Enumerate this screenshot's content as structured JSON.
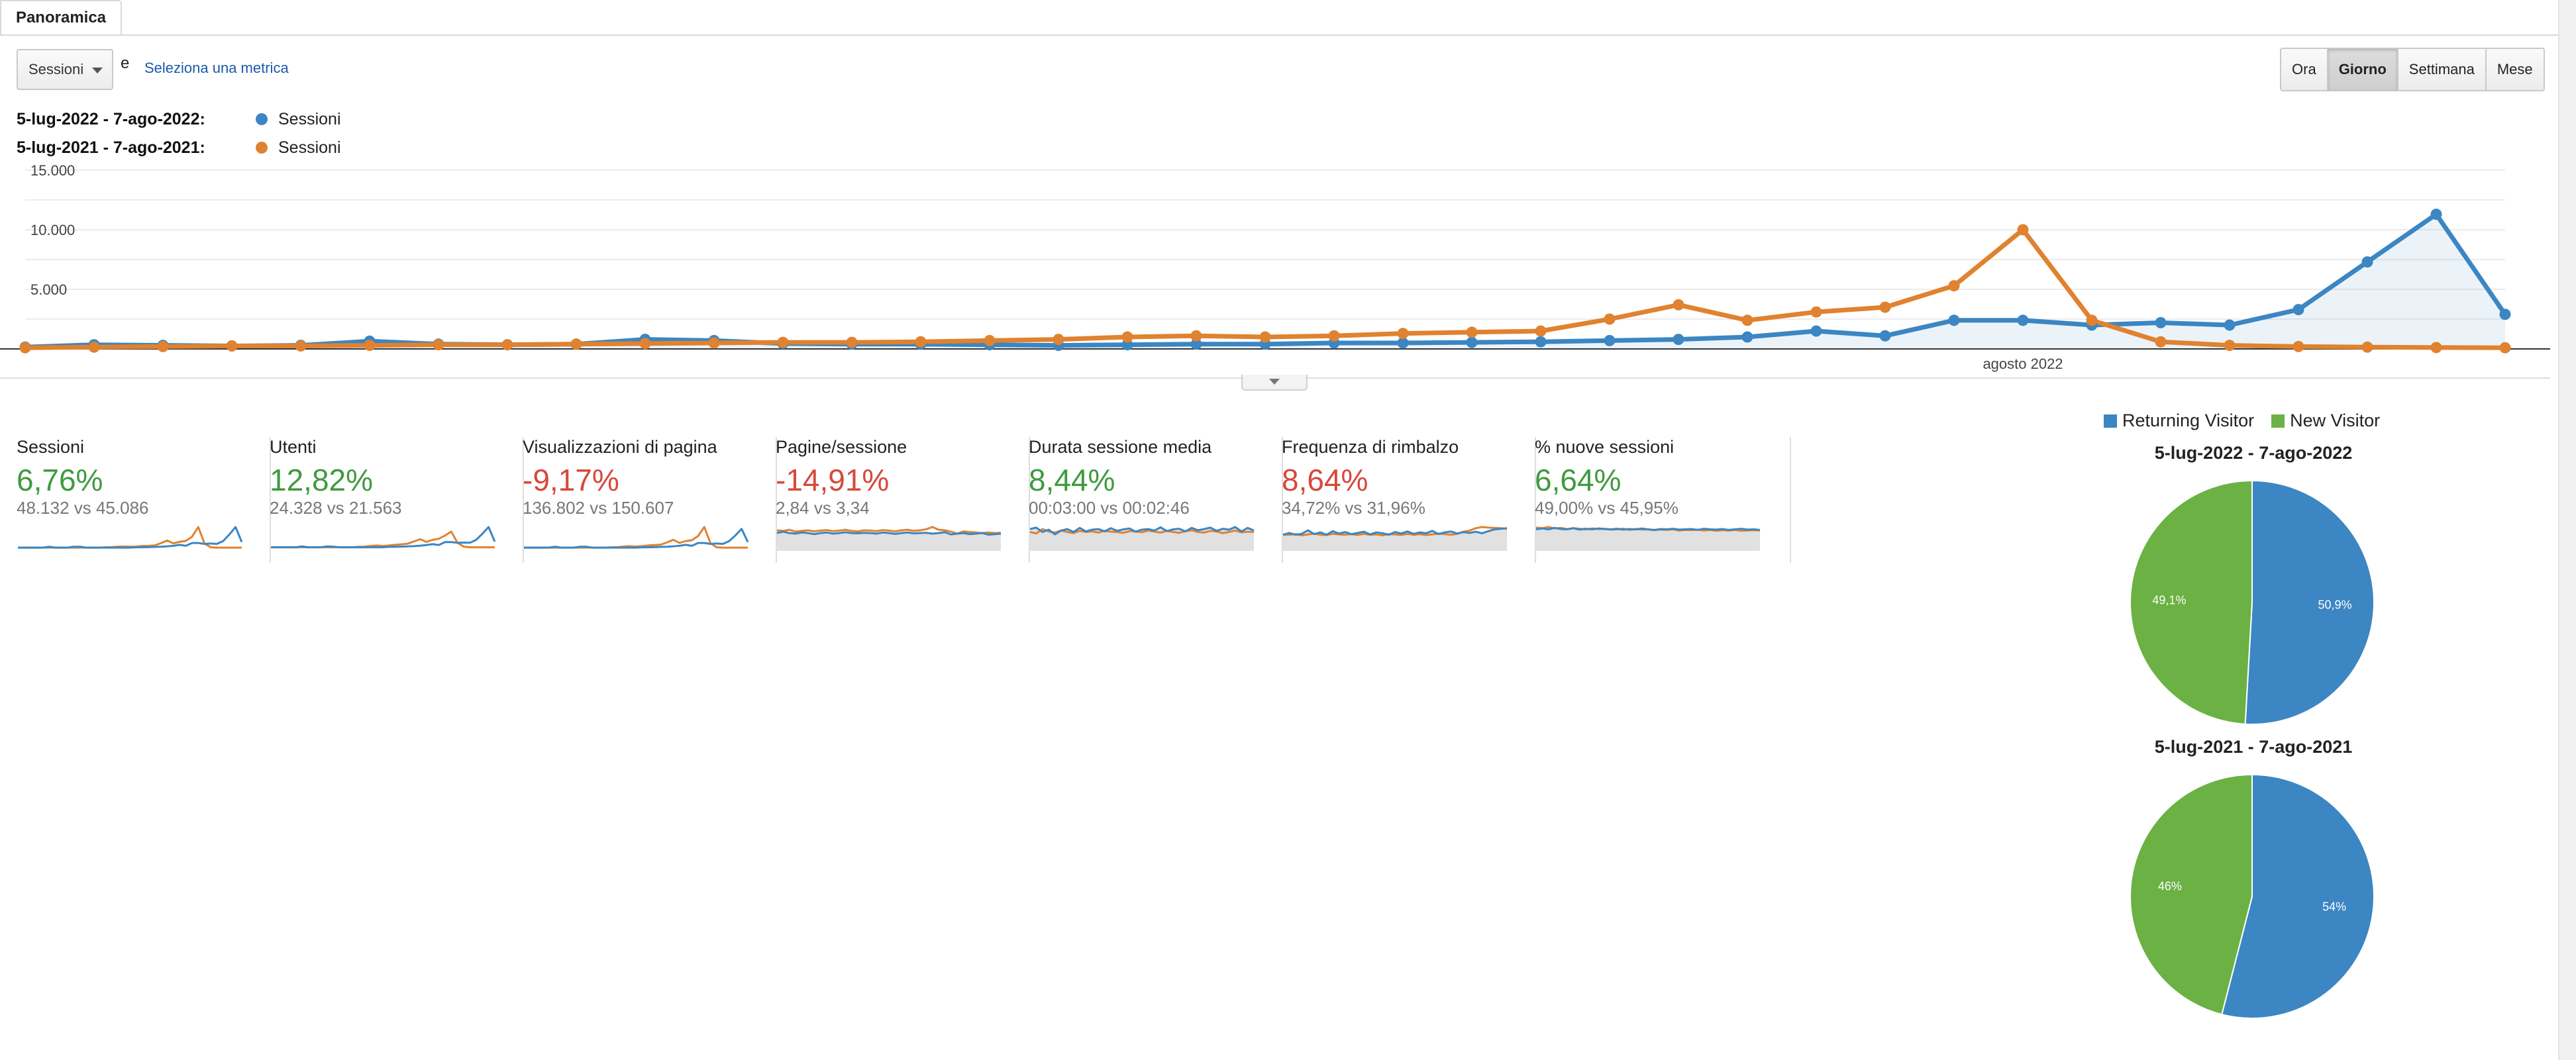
{
  "tabs": {
    "overview": "Panoramica"
  },
  "controls": {
    "metric_select": "Sessioni",
    "conjunction": "e",
    "select_metric_link": "Seleziona una metrica",
    "granularity": [
      "Ora",
      "Giorno",
      "Settimana",
      "Mese"
    ],
    "granularity_active": "Giorno"
  },
  "legend": [
    {
      "range": "5-lug-2022 - 7-ago-2022:",
      "series": "Sessioni",
      "color": "#3b86c3"
    },
    {
      "range": "5-lug-2021 - 7-ago-2021:",
      "series": "Sessioni",
      "color": "#e0822f"
    }
  ],
  "chart_data": {
    "type": "line",
    "y_ticks": [
      "15.000",
      "10.000",
      "5.000"
    ],
    "ylim": [
      0,
      15000
    ],
    "x_annotation": "agosto 2022",
    "grid": true,
    "series": [
      {
        "name": "Sessioni",
        "color": "#3b86c3",
        "fill": true,
        "values": [
          150,
          350,
          300,
          250,
          300,
          650,
          400,
          350,
          400,
          800,
          700,
          450,
          400,
          400,
          350,
          300,
          350,
          400,
          400,
          500,
          500,
          550,
          600,
          700,
          800,
          1000,
          1500,
          1100,
          2400,
          2400,
          2000,
          2200,
          2000,
          3300,
          7300,
          11300,
          2900
        ]
      },
      {
        "name": "Sessioni",
        "color": "#e0822f",
        "fill": false,
        "values": [
          100,
          150,
          200,
          250,
          250,
          300,
          350,
          350,
          400,
          450,
          500,
          550,
          550,
          600,
          700,
          800,
          1000,
          1100,
          1000,
          1100,
          1300,
          1400,
          1500,
          2500,
          3700,
          2400,
          3100,
          3500,
          5300,
          10000,
          2400,
          600,
          300,
          200,
          150,
          120,
          100
        ]
      }
    ]
  },
  "metrics": [
    {
      "name": "Sessioni",
      "pct": "6,76%",
      "trend": "pos",
      "compare": "48.132 vs 45.086",
      "spark_a": [
        1,
        1,
        1,
        1,
        1,
        1.5,
        1,
        1,
        1,
        1.5,
        1.5,
        1,
        1,
        1,
        1,
        1,
        1,
        1,
        1,
        1.2,
        1.2,
        1.3,
        1.4,
        1.5,
        1.7,
        2,
        2.5,
        2,
        3.5,
        3.5,
        3,
        3.2,
        3,
        4.5,
        8,
        12,
        4
      ],
      "spark_b": [
        1,
        1,
        1,
        1,
        1,
        1,
        1,
        1,
        1,
        1,
        1,
        1,
        1,
        1,
        1.2,
        1.3,
        1.5,
        1.6,
        1.5,
        1.6,
        1.9,
        2,
        2.2,
        3.4,
        4.8,
        3.3,
        4.1,
        4.6,
        6.8,
        12,
        3.3,
        1.2,
        1,
        1,
        1,
        1,
        1
      ]
    },
    {
      "name": "Utenti",
      "pct": "12,82%",
      "trend": "pos",
      "compare": "24.328 vs 21.563",
      "spark_a": [
        1,
        1,
        1,
        1,
        1,
        1.4,
        1,
        1,
        1,
        1.4,
        1.3,
        1,
        1,
        1,
        1,
        1,
        1,
        1,
        1,
        1.2,
        1.2,
        1.3,
        1.4,
        1.5,
        1.7,
        2,
        2.4,
        2,
        3.3,
        3.3,
        3,
        3.1,
        3,
        4.3,
        7,
        10,
        3.5
      ],
      "spark_b": [
        1,
        1,
        1,
        1,
        1,
        1,
        1,
        1,
        1,
        1,
        1,
        1,
        1,
        1,
        1.2,
        1.3,
        1.6,
        1.8,
        1.6,
        1.8,
        2.1,
        2.3,
        2.6,
        3.6,
        4.6,
        3.4,
        4.3,
        4.8,
        6.2,
        8,
        3,
        1.3,
        1,
        1,
        1,
        1,
        1
      ]
    },
    {
      "name": "Visualizzazioni di pagina",
      "pct": "-9,17%",
      "trend": "neg",
      "compare": "136.802 vs 150.607",
      "spark_a": [
        1,
        1,
        1,
        1,
        1,
        1.5,
        1,
        1,
        1,
        1.5,
        1.5,
        1,
        1,
        1,
        1,
        1,
        1,
        1,
        1,
        1.2,
        1.2,
        1.3,
        1.4,
        1.5,
        1.7,
        2,
        2.5,
        2,
        3.5,
        3.5,
        3,
        3.2,
        3,
        4.5,
        7.5,
        11,
        4
      ],
      "spark_b": [
        1,
        1,
        1,
        1,
        1,
        1,
        1,
        1,
        1,
        1,
        1,
        1,
        1,
        1,
        1.2,
        1.3,
        1.6,
        1.8,
        1.6,
        1.8,
        2.2,
        2.4,
        2.6,
        3.8,
        5.2,
        3.5,
        4.5,
        5,
        7.2,
        12,
        3.3,
        1.2,
        1,
        1,
        1,
        1,
        1
      ]
    },
    {
      "name": "Pagine/sessione",
      "pct": "-14,91%",
      "trend": "neg",
      "compare": "2,84 vs 3,34",
      "spark_a": [
        6,
        6.5,
        6,
        5.8,
        6.2,
        6,
        5.6,
        6,
        6.2,
        5.8,
        6,
        6.3,
        6,
        5.9,
        6.1,
        6,
        5.8,
        6.2,
        6,
        5.7,
        6,
        6.2,
        5.9,
        6,
        6.1,
        5.8,
        6,
        6.3,
        5.5,
        5.8,
        6,
        5.6,
        5.8,
        6,
        5.4,
        5.6,
        5.8
      ],
      "spark_b": [
        7,
        6.8,
        7.2,
        6.5,
        6.8,
        7,
        6.6,
        6.9,
        7.1,
        6.7,
        6.9,
        7.2,
        6.8,
        6.6,
        7,
        6.9,
        6.7,
        7.1,
        6.9,
        6.6,
        7,
        7.2,
        6.8,
        7,
        7.4,
        8.2,
        7.2,
        7,
        6.5,
        5.8,
        6.6,
        6.4,
        6.2,
        6,
        6.2,
        6,
        6.1
      ]
    },
    {
      "name": "Durata sessione media",
      "pct": "8,44%",
      "trend": "pos",
      "compare": "00:03:00 vs 00:02:46",
      "spark_a": [
        7,
        7.5,
        6,
        6.8,
        5.2,
        6.5,
        7,
        6,
        7.4,
        6.2,
        6.8,
        7,
        6.2,
        7.3,
        6.4,
        6.9,
        7.2,
        6.1,
        6.8,
        7,
        6.5,
        7.6,
        6.3,
        6.9,
        7.1,
        6.2,
        7.4,
        6.6,
        7,
        7.5,
        6.4,
        7.1,
        6.8,
        7.7,
        6.2,
        7.4,
        6.5
      ],
      "spark_b": [
        6,
        5.5,
        7,
        6.2,
        5.8,
        6.5,
        6,
        5.6,
        6.4,
        6,
        6.2,
        5.8,
        6.4,
        6.1,
        6,
        5.7,
        6.3,
        6.2,
        5.9,
        6.5,
        6.1,
        5.8,
        6.4,
        6,
        5.7,
        6.3,
        6.6,
        6,
        5.8,
        6.4,
        6.2,
        5.6,
        6,
        6.5,
        5.9,
        6.1,
        6
      ]
    },
    {
      "name": "Frequenza di rimbalzo",
      "pct": "8,64%",
      "trend": "neg",
      "compare": "34,72% vs 31,96%",
      "spark_a": [
        5,
        5.6,
        5,
        5.3,
        6.5,
        5.2,
        5.8,
        5,
        6.2,
        5.4,
        5.9,
        5.2,
        5.6,
        6,
        5.1,
        5.8,
        5.5,
        5,
        5.9,
        5.4,
        6.1,
        5.3,
        5.8,
        5.5,
        6.3,
        5.2,
        5.8,
        6.1,
        5.4,
        5.9,
        5.6,
        6,
        5.5,
        6.2,
        6.8,
        7,
        7.2
      ],
      "spark_b": [
        5,
        5,
        5.2,
        4.8,
        5.1,
        5.4,
        5,
        4.9,
        5.3,
        5.1,
        5,
        5.2,
        4.9,
        5.3,
        5,
        5.1,
        4.8,
        5.2,
        5.1,
        4.9,
        5.3,
        5,
        5.2,
        4.9,
        5.1,
        5.4,
        5.2,
        5,
        5.3,
        6,
        6.4,
        7.2,
        7.6,
        7.4,
        7.3,
        7.2,
        7
      ]
    },
    {
      "name": "% nuove sessioni",
      "pct": "6,64%",
      "trend": "pos",
      "compare": "49,00% vs 45,95%",
      "spark_a": [
        7,
        7.3,
        7,
        7.5,
        7.1,
        7,
        7.4,
        6.9,
        7.2,
        7,
        7.3,
        7.1,
        7,
        7.2,
        6.9,
        7.1,
        7,
        7.3,
        7,
        6.8,
        7.1,
        7,
        7.2,
        6.9,
        7,
        7.1,
        6.8,
        7.2,
        7,
        6.9,
        7.1,
        6.8,
        7,
        7.2,
        6.9,
        7,
        6.8
      ],
      "spark_b": [
        7.6,
        7.4,
        7.8,
        7.3,
        7.5,
        7.1,
        7.4,
        7.2,
        7,
        7.3,
        7.1,
        7.2,
        6.9,
        7,
        7.2,
        6.8,
        7.1,
        6.9,
        7,
        6.7,
        6.9,
        6.8,
        7,
        6.6,
        6.8,
        6.7,
        6.9,
        6.6,
        6.8,
        6.5,
        6.7,
        6.6,
        6.8,
        6.5,
        6.6,
        6.7,
        6.6
      ]
    }
  ],
  "pie_legend": [
    {
      "label": "Returning Visitor",
      "color": "#3b86c3"
    },
    {
      "label": "New Visitor",
      "color": "#6bb143"
    }
  ],
  "pies": [
    {
      "title": "5-lug-2022 - 7-ago-2022",
      "returning": 50.9,
      "new": 49.1,
      "returning_label": "50,9%",
      "new_label": "49,1%"
    },
    {
      "title": "5-lug-2021 - 7-ago-2021",
      "returning": 54,
      "new": 46,
      "returning_label": "54%",
      "new_label": "46%"
    }
  ]
}
